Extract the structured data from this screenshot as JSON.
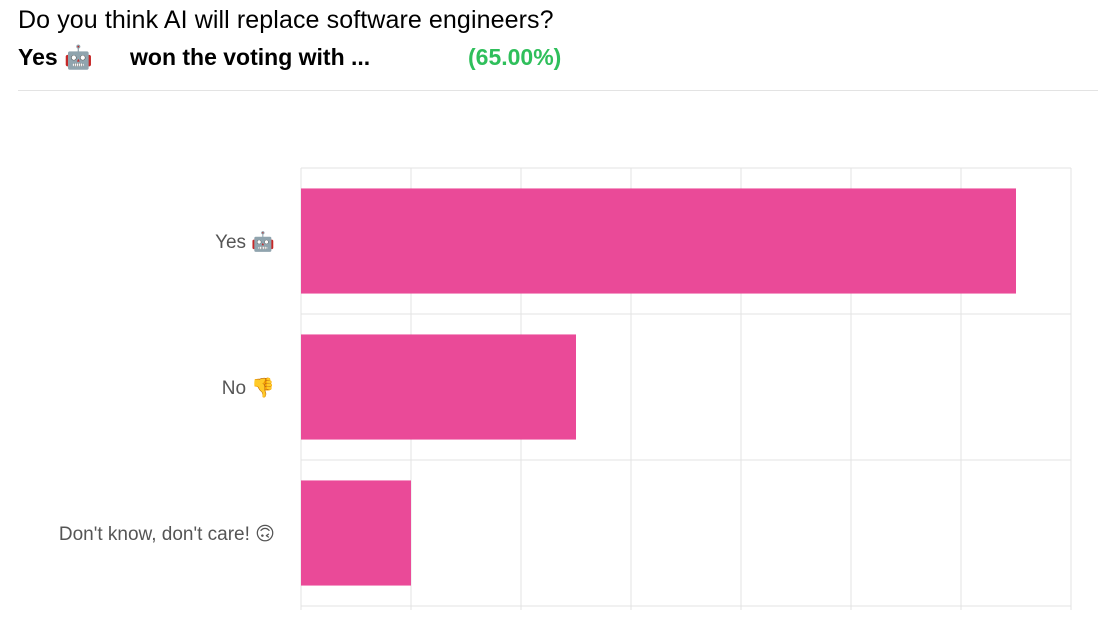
{
  "header": {
    "question": "Do you think AI will replace software engineers?",
    "winner_label": "Yes 🤖",
    "won_text": "won the voting with ...",
    "winner_percent": "(65.00%)"
  },
  "colors": {
    "bar": "#ea4a98",
    "percent_text": "#2fbf5b",
    "grid": "#e3e3e3",
    "label_text": "#555555"
  },
  "chart_data": {
    "type": "bar",
    "orientation": "horizontal",
    "title": "Do you think AI will replace software engineers?",
    "categories": [
      "Yes 🤖",
      "No 👎",
      "Don't know, don't care! 🙃"
    ],
    "values": [
      65,
      25,
      10
    ],
    "unit": "%",
    "xlim": [
      0,
      70
    ],
    "xlabel": "",
    "ylabel": "",
    "grid": true,
    "legend": "none"
  }
}
